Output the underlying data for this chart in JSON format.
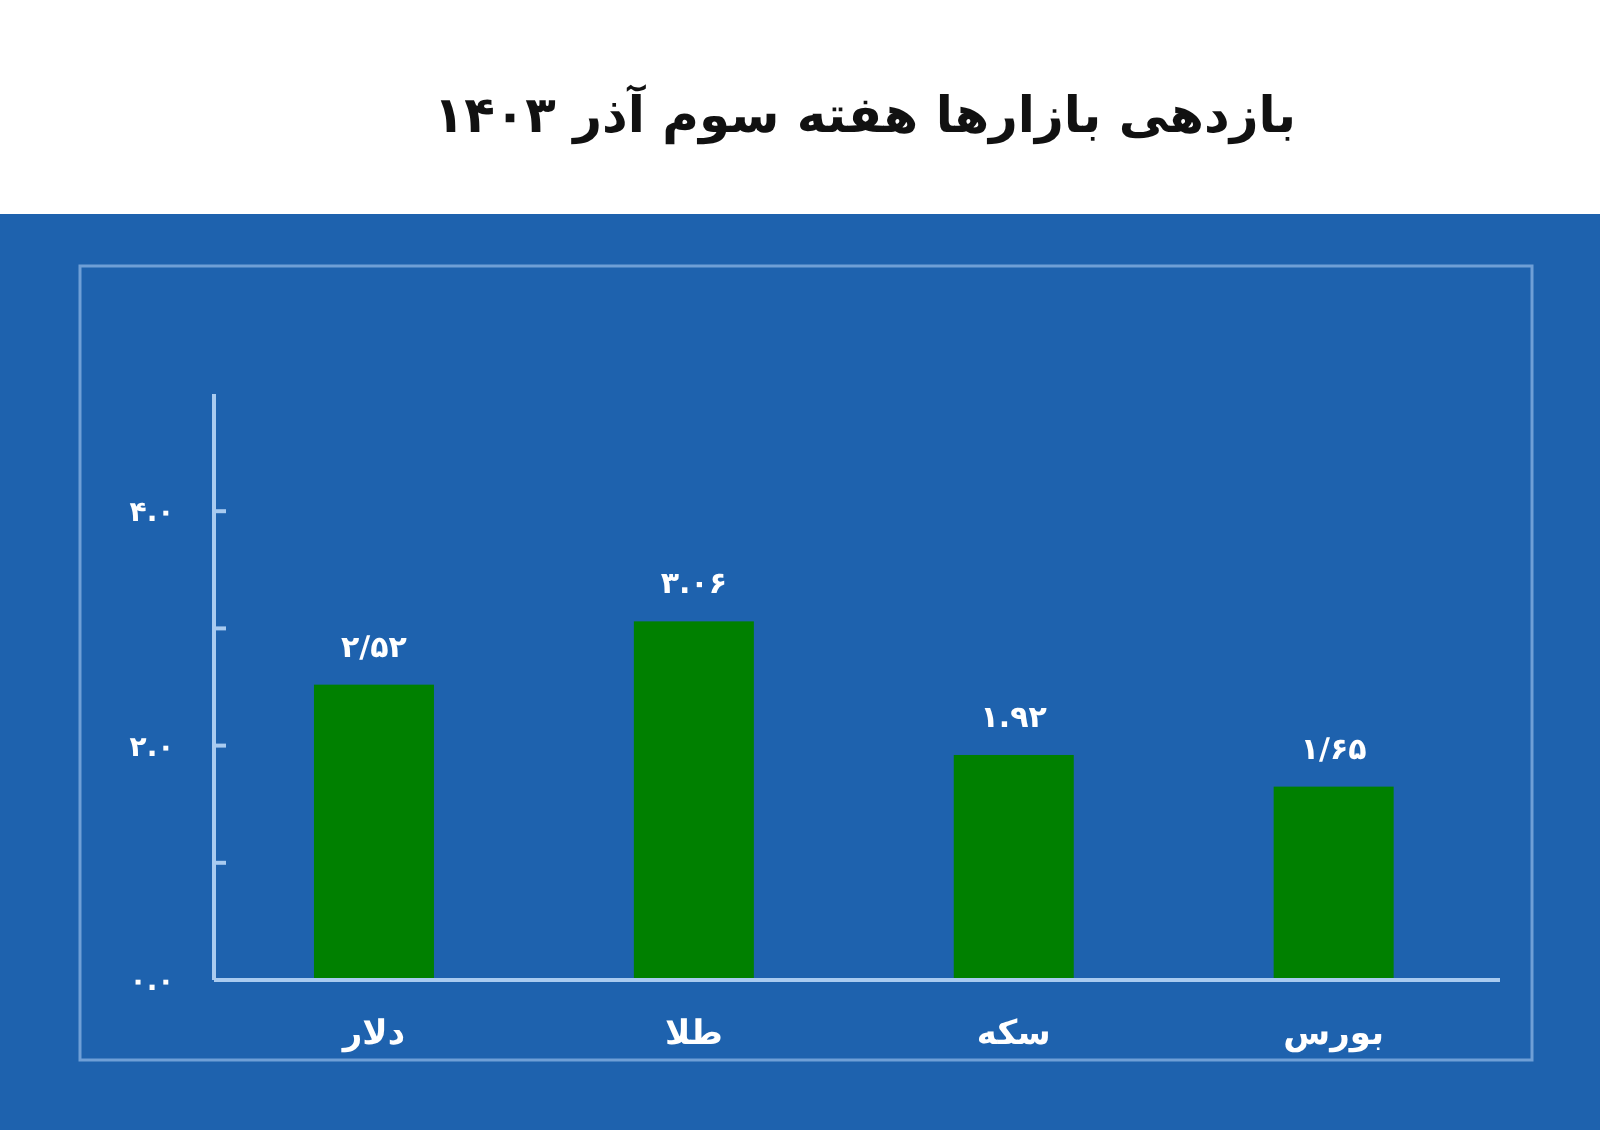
{
  "chart_data": {
    "type": "bar",
    "title": "بازدهی بازارها هفته سوم آذر ۱۴۰۳",
    "categories": [
      "دلار",
      "طلا",
      "سکه",
      "بورس"
    ],
    "values": [
      2.52,
      3.06,
      1.92,
      1.65
    ],
    "value_labels": [
      "۲/۵۲",
      "۳.۰۶",
      "۱.۹۲",
      "۱/۶۵"
    ],
    "color": "#008000",
    "ylim": [
      0,
      5
    ],
    "yticks": [
      {
        "value": 0,
        "label": "۰.۰"
      },
      {
        "value": 1,
        "label": null
      },
      {
        "value": 2,
        "label": "۲.۰"
      },
      {
        "value": 3,
        "label": null
      },
      {
        "value": 4,
        "label": "۴.۰"
      }
    ]
  }
}
